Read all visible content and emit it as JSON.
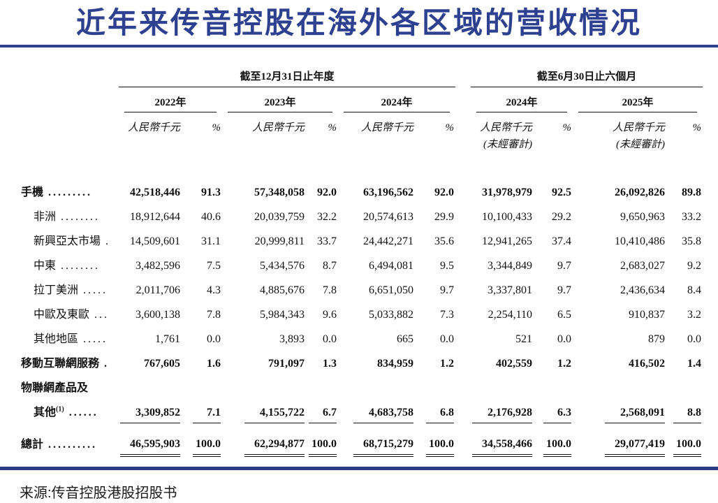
{
  "title": "近年来传音控股在海外各区域的营收情况",
  "source": "来源:传音控股港股招股书",
  "colors": {
    "accent_navy": "#2e4191",
    "bottom_bar": "#2b3b84",
    "text": "#111111"
  },
  "table": {
    "annual_header": "截至12月31日止年度",
    "interim_header": "截至6月30日止六個月",
    "years": [
      "2022年",
      "2023年",
      "2024年",
      "2024年",
      "2025年"
    ],
    "unit_label": "人民幣千元",
    "pct_label": "%",
    "unaudited_label": "(未經審計)",
    "rows": [
      {
        "label": "手機",
        "leader": ".........",
        "indent": 0,
        "bold": true,
        "underline": "none",
        "values": [
          "42,518,446",
          "91.3",
          "57,348,058",
          "92.0",
          "63,196,562",
          "92.0",
          "31,978,979",
          "92.5",
          "26,092,826",
          "89.8"
        ]
      },
      {
        "label": "非洲",
        "leader": "........",
        "indent": 1,
        "bold": false,
        "underline": "none",
        "values": [
          "18,912,644",
          "40.6",
          "20,039,759",
          "32.2",
          "20,574,613",
          "29.9",
          "10,100,433",
          "29.2",
          "9,650,963",
          "33.2"
        ]
      },
      {
        "label": "新興亞太市場",
        "leader": ".",
        "indent": 1,
        "bold": false,
        "underline": "none",
        "values": [
          "14,509,601",
          "31.1",
          "20,999,811",
          "33.7",
          "24,442,271",
          "35.6",
          "12,941,265",
          "37.4",
          "10,410,486",
          "35.8"
        ]
      },
      {
        "label": "中東",
        "leader": "........",
        "indent": 1,
        "bold": false,
        "underline": "none",
        "values": [
          "3,482,596",
          "7.5",
          "5,434,576",
          "8.7",
          "6,494,081",
          "9.5",
          "3,344,849",
          "9.7",
          "2,683,027",
          "9.2"
        ]
      },
      {
        "label": "拉丁美洲",
        "leader": ".....",
        "indent": 1,
        "bold": false,
        "underline": "none",
        "values": [
          "2,011,706",
          "4.3",
          "4,885,676",
          "7.8",
          "6,651,050",
          "9.7",
          "3,337,801",
          "9.7",
          "2,436,634",
          "8.4"
        ]
      },
      {
        "label": "中歐及東歐",
        "leader": "...",
        "indent": 1,
        "bold": false,
        "underline": "none",
        "values": [
          "3,600,138",
          "7.8",
          "5,984,343",
          "9.6",
          "5,033,882",
          "7.3",
          "2,254,110",
          "6.5",
          "910,837",
          "3.2"
        ]
      },
      {
        "label": "其他地區",
        "leader": ".....",
        "indent": 1,
        "bold": false,
        "underline": "none",
        "values": [
          "1,761",
          "0.0",
          "3,893",
          "0.0",
          "665",
          "0.0",
          "521",
          "0.0",
          "879",
          "0.0"
        ]
      },
      {
        "label": "移動互聯網服務",
        "leader": ".",
        "indent": 0,
        "bold": true,
        "underline": "none",
        "values": [
          "767,605",
          "1.6",
          "791,097",
          "1.3",
          "834,959",
          "1.2",
          "402,559",
          "1.2",
          "416,502",
          "1.4"
        ]
      },
      {
        "label": "物聯網產品及",
        "leader": "",
        "indent": 0,
        "bold": true,
        "underline": "none",
        "values": []
      },
      {
        "label": "其他",
        "sup": "(1)",
        "leader": "......",
        "indent": 1,
        "bold": true,
        "underline": "single",
        "values": [
          "3,309,852",
          "7.1",
          "4,155,722",
          "6.7",
          "4,683,758",
          "6.8",
          "2,176,928",
          "6.3",
          "2,568,091",
          "8.8"
        ]
      },
      {
        "label": "總計",
        "leader": "..........",
        "indent": 0,
        "bold": true,
        "underline": "double",
        "values": [
          "46,595,903",
          "100.0",
          "62,294,877",
          "100.0",
          "68,715,279",
          "100.0",
          "34,558,466",
          "100.0",
          "29,077,419",
          "100.0"
        ]
      }
    ]
  }
}
